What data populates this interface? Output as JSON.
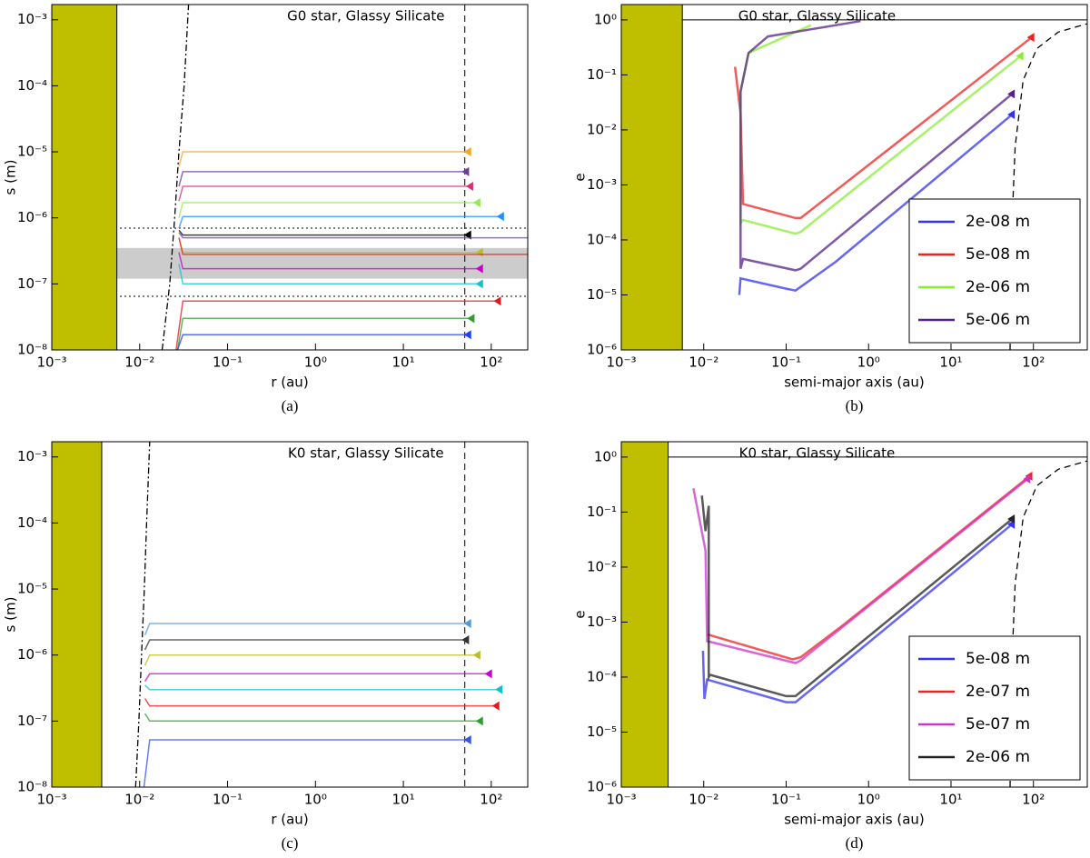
{
  "chart_data": [
    {
      "type": "line",
      "title": "G0 star, Glassy Silicate",
      "xlabel": "r (au)",
      "ylabel": "s (m)",
      "caption": "(a)",
      "log_x": true,
      "log_y": true,
      "xlim": [
        0.001,
        260
      ],
      "ylim": [
        1e-08,
        0.0017
      ],
      "xticks": [
        {
          "value": 0.001,
          "label": "10⁻³"
        },
        {
          "value": 0.01,
          "label": "10⁻²"
        },
        {
          "value": 0.1,
          "label": "10⁻¹"
        },
        {
          "value": 1,
          "label": "10⁰"
        },
        {
          "value": 10,
          "label": "10¹"
        },
        {
          "value": 100,
          "label": "10²"
        }
      ],
      "yticks": [
        {
          "value": 1e-08,
          "label": "10⁻⁸"
        },
        {
          "value": 1e-07,
          "label": "10⁻⁷"
        },
        {
          "value": 1e-06,
          "label": "10⁻⁶"
        },
        {
          "value": 1e-05,
          "label": "10⁻⁵"
        },
        {
          "value": 0.0001,
          "label": "10⁻⁴"
        },
        {
          "value": 0.001,
          "label": "10⁻³"
        }
      ],
      "regions": [
        {
          "x": [
            0.001,
            0.0055
          ],
          "color": "#bfbf00"
        }
      ],
      "bands": [
        {
          "y": [
            1.2e-07,
            3.5e-07
          ],
          "color": "#cccccc"
        }
      ],
      "hlines": [
        {
          "value": 7e-07,
          "style": "dotted"
        },
        {
          "value": 6.5e-08,
          "style": "dotted"
        }
      ],
      "vlines": [
        {
          "value": 50,
          "style": "dashed"
        }
      ],
      "series": [
        {
          "color": "#000000",
          "style": "dashdot",
          "x": [
            0.018,
            0.022,
            0.025,
            0.028,
            0.032,
            0.036
          ],
          "values": [
            1e-08,
            1e-07,
            1e-06,
            1e-05,
            0.0001,
            0.0017
          ]
        },
        {
          "color": "#f5a623",
          "marker": "triangle",
          "x": [
            0.028,
            0.031,
            55
          ],
          "values": [
            6e-06,
            1e-05,
            1e-05
          ]
        },
        {
          "color": "#6a3d9a",
          "marker": "triangle",
          "x": [
            0.028,
            0.031,
            52
          ],
          "values": [
            3e-06,
            5e-06,
            5e-06
          ]
        },
        {
          "color": "#d6336c",
          "marker": "triangle",
          "x": [
            0.028,
            0.031,
            58
          ],
          "values": [
            1.8e-06,
            3e-06,
            3e-06
          ]
        },
        {
          "color": "#90ee50",
          "marker": "triangle",
          "x": [
            0.028,
            0.031,
            70
          ],
          "values": [
            1e-06,
            1.7e-06,
            1.7e-06
          ]
        },
        {
          "color": "#1e90ff",
          "marker": "triangle",
          "x": [
            0.028,
            0.031,
            130
          ],
          "values": [
            7e-07,
            1.05e-06,
            1.05e-06
          ]
        },
        {
          "color": "#000000",
          "marker": "triangle",
          "x": [
            0.028,
            0.031,
            55
          ],
          "values": [
            6.5e-07,
            5.5e-07,
            5.5e-07
          ]
        },
        {
          "color": "#7b3fa0",
          "x": [
            0.028,
            0.031,
            260
          ],
          "values": [
            6e-07,
            5e-07,
            5e-07
          ]
        },
        {
          "color": "#bcbd22",
          "marker": "triangle",
          "x": [
            0.028,
            0.031,
            75
          ],
          "values": [
            5e-07,
            3e-07,
            3e-07
          ]
        },
        {
          "color": "#d62728",
          "x": [
            0.028,
            0.031,
            260
          ],
          "values": [
            5e-07,
            2.8e-07,
            2.8e-07
          ]
        },
        {
          "color": "#cc00cc",
          "marker": "triangle",
          "x": [
            0.028,
            0.031,
            75
          ],
          "values": [
            3e-07,
            1.7e-07,
            1.7e-07
          ]
        },
        {
          "color": "#17becf",
          "marker": "triangle",
          "x": [
            0.028,
            0.031,
            75
          ],
          "values": [
            2e-07,
            1e-07,
            1e-07
          ]
        },
        {
          "color": "#e31a1c",
          "marker": "triangle",
          "x": [
            0.026,
            0.031,
            120
          ],
          "values": [
            1e-08,
            5.5e-08,
            5.5e-08
          ]
        },
        {
          "color": "#2ca02c",
          "marker": "triangle",
          "x": [
            0.027,
            0.031,
            60
          ],
          "values": [
            1e-08,
            3e-08,
            3e-08
          ]
        },
        {
          "color": "#1f3fff",
          "marker": "triangle",
          "x": [
            0.027,
            0.031,
            55
          ],
          "values": [
            1e-08,
            1.7e-08,
            1.7e-08
          ]
        }
      ]
    },
    {
      "type": "line",
      "title": "G0 star, Glassy Silicate",
      "xlabel": "semi-major axis (au)",
      "ylabel": "e",
      "caption": "(b)",
      "log_x": true,
      "log_y": true,
      "xlim": [
        0.001,
        450
      ],
      "ylim": [
        1e-06,
        1.9
      ],
      "legend": "lower right",
      "xticks": [
        {
          "value": 0.001,
          "label": "10⁻³"
        },
        {
          "value": 0.01,
          "label": "10⁻²"
        },
        {
          "value": 0.1,
          "label": "10⁻¹"
        },
        {
          "value": 1,
          "label": "10⁰"
        },
        {
          "value": 10,
          "label": "10¹"
        },
        {
          "value": 100,
          "label": "10²"
        }
      ],
      "yticks": [
        {
          "value": 1e-06,
          "label": "10⁻⁶"
        },
        {
          "value": 1e-05,
          "label": "10⁻⁵"
        },
        {
          "value": 0.0001,
          "label": "10⁻⁴"
        },
        {
          "value": 0.001,
          "label": "10⁻³"
        },
        {
          "value": 0.01,
          "label": "10⁻²"
        },
        {
          "value": 0.1,
          "label": "10⁻¹"
        },
        {
          "value": 1,
          "label": "10⁰"
        }
      ],
      "regions": [
        {
          "x": [
            0.001,
            0.0055
          ],
          "color": "#bfbf00"
        }
      ],
      "hlines": [
        {
          "value": 1,
          "style": "solid"
        }
      ],
      "series": [
        {
          "color": "#000000",
          "style": "dashed",
          "x": [
            52,
            54,
            60,
            75,
            110,
            200,
            450
          ],
          "values": [
            1e-06,
            0.0001,
            0.005,
            0.08,
            0.3,
            0.6,
            0.85
          ]
        },
        {
          "name": "2e-08 m",
          "color": "#3333ee",
          "marker": "triangle",
          "x": [
            0.027,
            0.028,
            0.1,
            0.13,
            0.4,
            55
          ],
          "values": [
            1e-05,
            2e-05,
            1.3e-05,
            1.2e-05,
            4e-05,
            0.019
          ]
        },
        {
          "name": "5e-08 m",
          "color": "#ee2222",
          "marker": "triangle",
          "x": [
            0.024,
            0.028,
            0.03,
            0.13,
            0.15,
            95
          ],
          "values": [
            0.14,
            0.02,
            0.00045,
            0.00025,
            0.00025,
            0.48
          ]
        },
        {
          "name": "2e-06 m",
          "color": "#88ee33",
          "marker": "triangle",
          "x": [
            0.2,
            0.035,
            0.028,
            0.028,
            0.03,
            0.13,
            0.15,
            70
          ],
          "values": [
            0.8,
            0.25,
            0.05,
            0.0002,
            0.00023,
            0.00013,
            0.00014,
            0.22
          ]
        },
        {
          "name": "5e-06 m",
          "color": "#552288",
          "marker": "triangle",
          "x": [
            0.8,
            0.06,
            0.035,
            0.028,
            0.028,
            0.03,
            0.13,
            0.15,
            55
          ],
          "values": [
            0.95,
            0.5,
            0.25,
            0.05,
            3e-05,
            4.5e-05,
            2.8e-05,
            3e-05,
            0.045
          ]
        }
      ]
    },
    {
      "type": "line",
      "title": "K0 star, Glassy Silicate",
      "xlabel": "r (au)",
      "ylabel": "s (m)",
      "caption": "(c)",
      "log_x": true,
      "log_y": true,
      "xlim": [
        0.001,
        260
      ],
      "ylim": [
        1e-08,
        0.0017
      ],
      "xticks": [
        {
          "value": 0.001,
          "label": "10⁻³"
        },
        {
          "value": 0.01,
          "label": "10⁻²"
        },
        {
          "value": 0.1,
          "label": "10⁻¹"
        },
        {
          "value": 1,
          "label": "10⁰"
        },
        {
          "value": 10,
          "label": "10¹"
        },
        {
          "value": 100,
          "label": "10²"
        }
      ],
      "yticks": [
        {
          "value": 1e-08,
          "label": "10⁻⁸"
        },
        {
          "value": 1e-07,
          "label": "10⁻⁷"
        },
        {
          "value": 1e-06,
          "label": "10⁻⁶"
        },
        {
          "value": 1e-05,
          "label": "10⁻⁵"
        },
        {
          "value": 0.0001,
          "label": "10⁻⁴"
        },
        {
          "value": 0.001,
          "label": "10⁻³"
        }
      ],
      "regions": [
        {
          "x": [
            0.001,
            0.0037
          ],
          "color": "#bfbf00"
        }
      ],
      "vlines": [
        {
          "value": 50,
          "style": "dashed"
        }
      ],
      "series": [
        {
          "color": "#000000",
          "style": "dashdot",
          "x": [
            0.009,
            0.0098,
            0.0105,
            0.0113,
            0.012,
            0.013
          ],
          "values": [
            1e-08,
            1e-07,
            1e-06,
            1e-05,
            0.0001,
            0.0017
          ]
        },
        {
          "color": "#5599dd",
          "marker": "triangle",
          "x": [
            0.0115,
            0.013,
            55
          ],
          "values": [
            2e-06,
            3e-06,
            3e-06
          ]
        },
        {
          "color": "#333333",
          "marker": "triangle",
          "x": [
            0.0115,
            0.013,
            52
          ],
          "values": [
            1.2e-06,
            1.7e-06,
            1.7e-06
          ]
        },
        {
          "color": "#bcbd22",
          "marker": "triangle",
          "x": [
            0.0115,
            0.013,
            70
          ],
          "values": [
            7e-07,
            1e-06,
            1e-06
          ]
        },
        {
          "color": "#cc00cc",
          "marker": "triangle",
          "x": [
            0.0115,
            0.013,
            95
          ],
          "values": [
            4e-07,
            5.2e-07,
            5.2e-07
          ]
        },
        {
          "color": "#17becf",
          "marker": "triangle",
          "x": [
            0.0115,
            0.013,
            125
          ],
          "values": [
            3.5e-07,
            3e-07,
            3e-07
          ]
        },
        {
          "color": "#e31a1c",
          "marker": "triangle",
          "x": [
            0.0115,
            0.013,
            115
          ],
          "values": [
            2.2e-07,
            1.7e-07,
            1.7e-07
          ]
        },
        {
          "color": "#2ca02c",
          "marker": "triangle",
          "x": [
            0.0115,
            0.013,
            75
          ],
          "values": [
            1.3e-07,
            1e-07,
            1e-07
          ]
        },
        {
          "color": "#3355ee",
          "marker": "triangle",
          "x": [
            0.0112,
            0.013,
            55
          ],
          "values": [
            1e-08,
            5.2e-08,
            5.2e-08
          ]
        }
      ]
    },
    {
      "type": "line",
      "title": "K0 star, Glassy Silicate",
      "xlabel": "semi-major axis (au)",
      "ylabel": "e",
      "caption": "(d)",
      "log_x": true,
      "log_y": true,
      "xlim": [
        0.001,
        450
      ],
      "ylim": [
        1e-06,
        1.9
      ],
      "legend": "lower right",
      "xticks": [
        {
          "value": 0.001,
          "label": "10⁻³"
        },
        {
          "value": 0.01,
          "label": "10⁻²"
        },
        {
          "value": 0.1,
          "label": "10⁻¹"
        },
        {
          "value": 1,
          "label": "10⁰"
        },
        {
          "value": 10,
          "label": "10¹"
        },
        {
          "value": 100,
          "label": "10²"
        }
      ],
      "yticks": [
        {
          "value": 1e-06,
          "label": "10⁻⁶"
        },
        {
          "value": 1e-05,
          "label": "10⁻⁵"
        },
        {
          "value": 0.0001,
          "label": "10⁻⁴"
        },
        {
          "value": 0.001,
          "label": "10⁻³"
        },
        {
          "value": 0.01,
          "label": "10⁻²"
        },
        {
          "value": 0.1,
          "label": "10⁻¹"
        },
        {
          "value": 1,
          "label": "10⁰"
        }
      ],
      "regions": [
        {
          "x": [
            0.001,
            0.0037
          ],
          "color": "#bfbf00"
        }
      ],
      "hlines": [
        {
          "value": 1,
          "style": "solid"
        }
      ],
      "series": [
        {
          "color": "#000000",
          "style": "dashed",
          "x": [
            52,
            54,
            60,
            75,
            110,
            200,
            450
          ],
          "values": [
            1e-06,
            0.0001,
            0.005,
            0.08,
            0.3,
            0.6,
            0.85
          ]
        },
        {
          "name": "5e-08 m",
          "color": "#3333ee",
          "marker": "triangle",
          "x": [
            0.0098,
            0.0102,
            0.011,
            0.1,
            0.13,
            0.5,
            55
          ],
          "values": [
            0.0003,
            4e-05,
            9e-05,
            3.5e-05,
            3.5e-05,
            0.00018,
            0.06
          ]
        },
        {
          "name": "2e-07 m",
          "color": "#ee2222",
          "marker": "triangle",
          "x": [
            0.011,
            0.12,
            0.15,
            0.5,
            90
          ],
          "values": [
            0.0006,
            0.00021,
            0.00023,
            0.0009,
            0.45
          ]
        },
        {
          "name": "5e-07 m",
          "color": "#cc33cc",
          "marker": "triangle",
          "x": [
            0.0075,
            0.0105,
            0.011,
            0.13,
            0.15,
            85
          ],
          "values": [
            0.27,
            0.02,
            0.00045,
            0.00018,
            0.0002,
            0.4
          ]
        },
        {
          "name": "2e-06 m",
          "color": "#222222",
          "marker": "triangle",
          "x": [
            0.0095,
            0.0105,
            0.0115,
            0.0115,
            0.012,
            0.1,
            0.13,
            55
          ],
          "values": [
            0.2,
            0.045,
            0.13,
            0.0001,
            0.00011,
            4.5e-05,
            4.5e-05,
            0.075
          ]
        }
      ]
    }
  ]
}
